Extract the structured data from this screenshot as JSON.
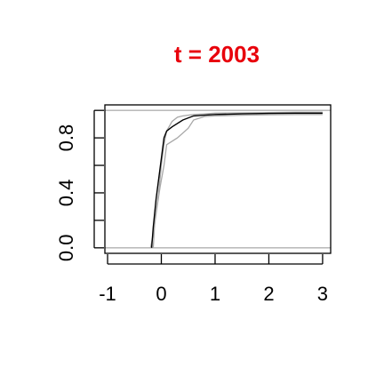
{
  "chart_data": {
    "type": "line",
    "title": "t = 2003",
    "title_color": "#e8000b",
    "xlabel": "",
    "ylabel": "",
    "xlim": [
      -1.05,
      3.15
    ],
    "ylim": [
      -0.04,
      1.04
    ],
    "x_ticks": [
      -1,
      0,
      1,
      2,
      3
    ],
    "x_tick_labels": [
      "-1",
      "0",
      "1",
      "2",
      "3"
    ],
    "y_ticks": [
      0,
      0.2,
      0.4,
      0.6,
      0.8,
      1.0
    ],
    "y_tick_labels": [
      "0.0",
      "",
      "0.4",
      "",
      "0.8",
      ""
    ],
    "grid": false,
    "reference_lines": {
      "values": [
        0,
        1
      ],
      "color": "#b0b0b0"
    },
    "series": [
      {
        "color": "#000000",
        "x": [
          -0.18,
          -0.15,
          -0.1,
          -0.05,
          0.0,
          0.05,
          0.1,
          0.2,
          0.4,
          0.6,
          0.8,
          1.0,
          1.5,
          2.0,
          2.5,
          3.0
        ],
        "y": [
          0.0,
          0.15,
          0.35,
          0.5,
          0.65,
          0.8,
          0.85,
          0.88,
          0.93,
          0.96,
          0.965,
          0.97,
          0.975,
          0.978,
          0.98,
          0.98
        ]
      },
      {
        "color": "#a8a8a8",
        "x": [
          -0.15,
          -0.12,
          -0.05,
          0.0,
          0.05,
          0.1,
          0.2,
          0.3,
          0.4,
          0.6,
          0.8,
          1.0,
          1.5,
          2.0,
          2.5,
          3.0
        ],
        "y": [
          0.0,
          0.2,
          0.4,
          0.6,
          0.75,
          0.85,
          0.92,
          0.95,
          0.96,
          0.97,
          0.975,
          0.98,
          0.982,
          0.984,
          0.986,
          0.986
        ]
      },
      {
        "color": "#a8a8a8",
        "x": [
          -0.2,
          -0.15,
          -0.08,
          -0.02,
          0.05,
          0.1,
          0.3,
          0.5,
          0.6,
          0.8,
          1.0,
          1.5,
          2.0,
          2.5,
          3.0
        ],
        "y": [
          0.0,
          0.1,
          0.3,
          0.45,
          0.6,
          0.75,
          0.8,
          0.87,
          0.93,
          0.955,
          0.96,
          0.965,
          0.968,
          0.97,
          0.97
        ]
      }
    ]
  }
}
